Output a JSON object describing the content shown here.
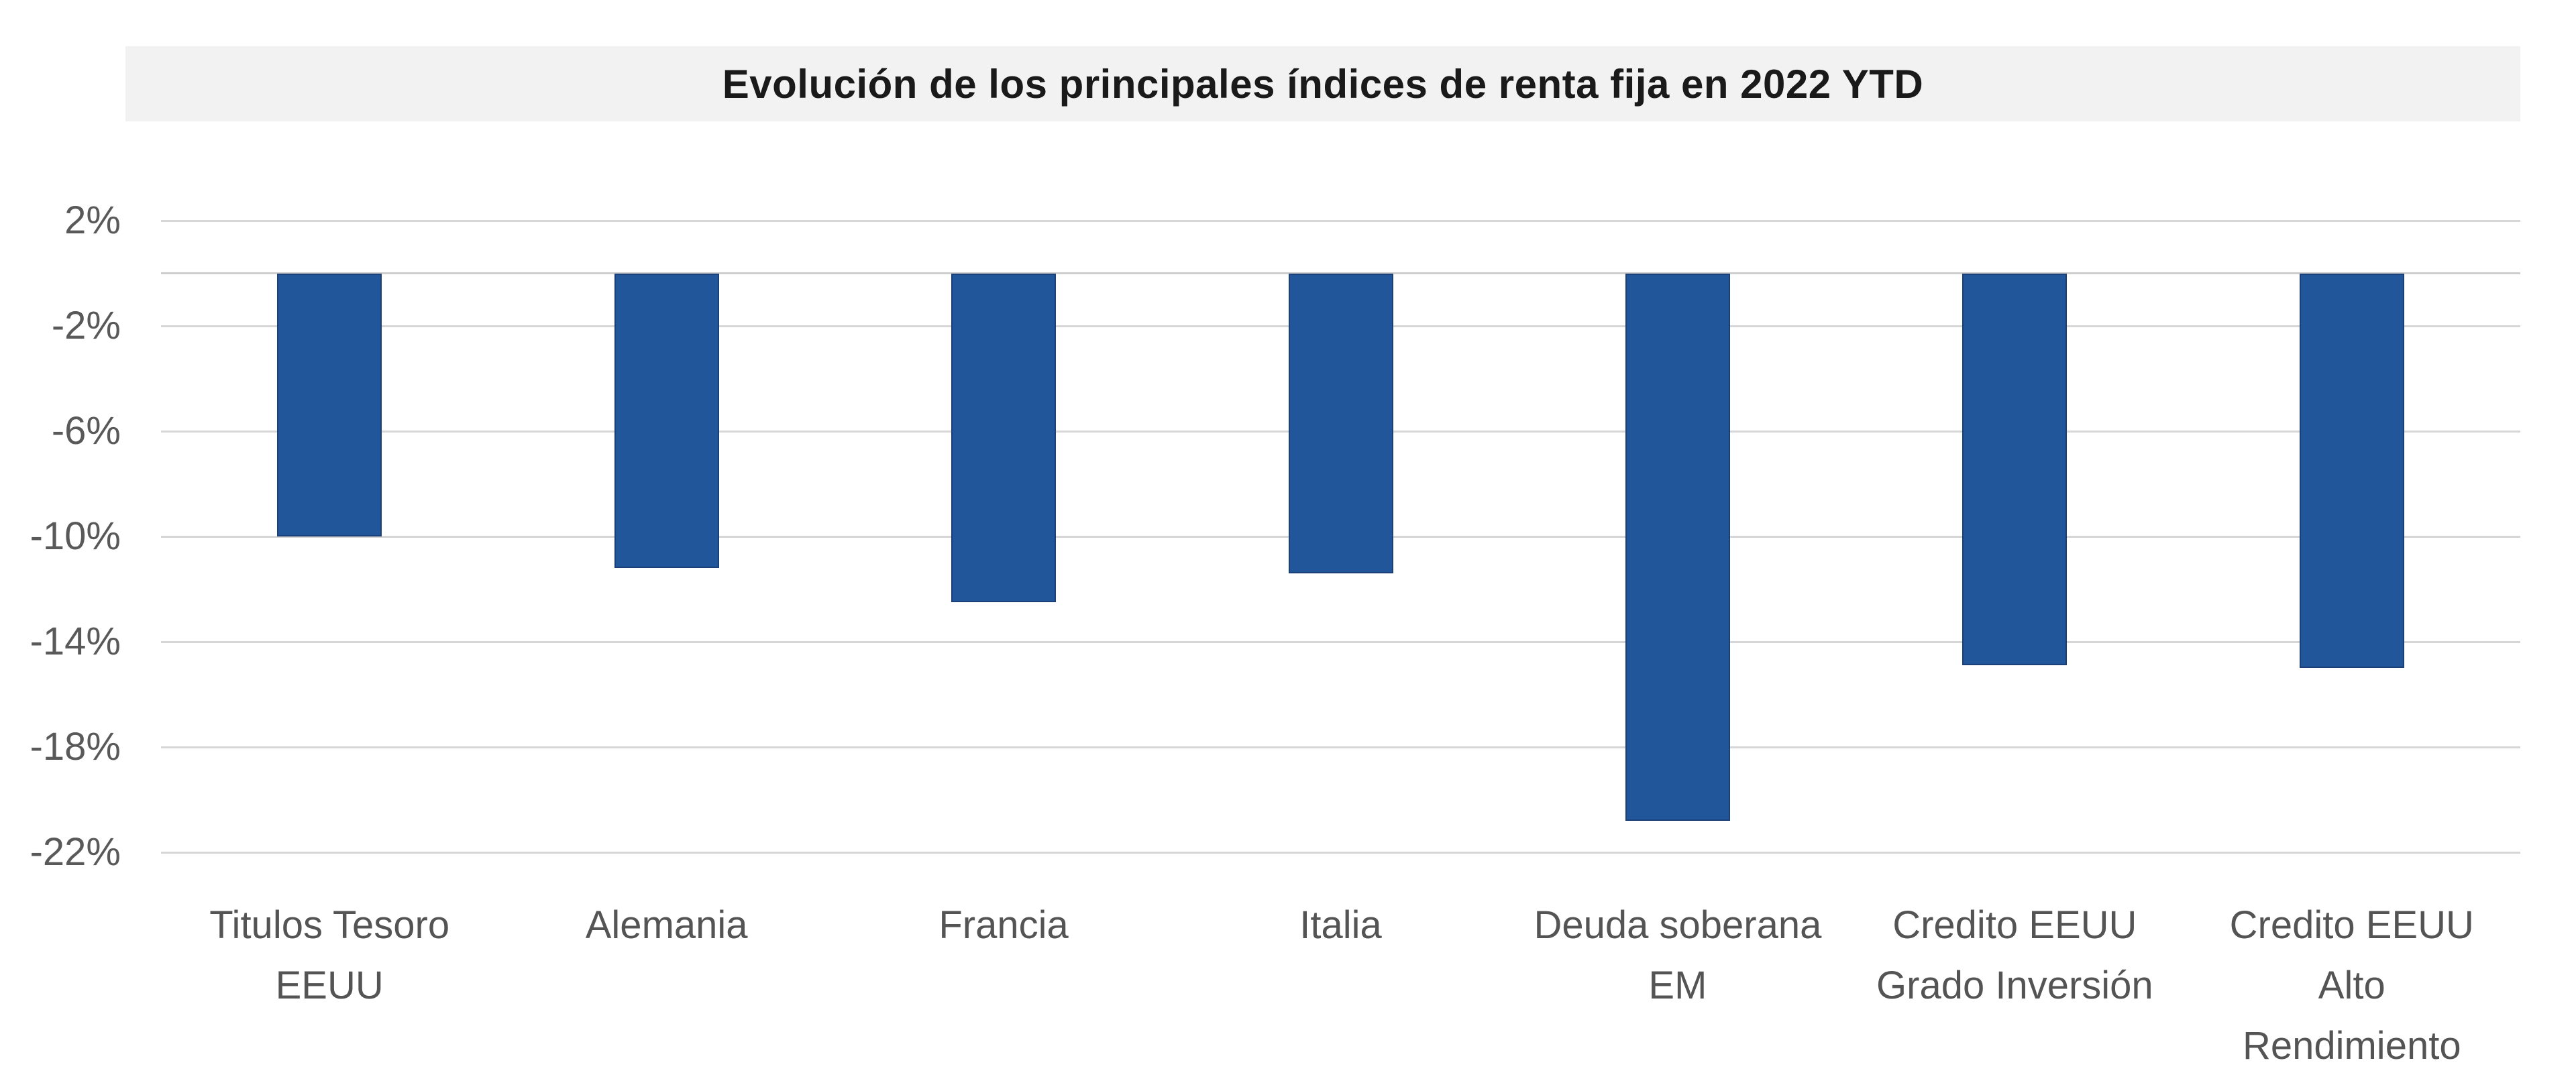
{
  "chart_data": {
    "type": "bar",
    "title": "Evolución de los principales índices de renta fija en 2022 YTD",
    "categories": [
      "Titulos Tesoro EEUU",
      "Alemania",
      "Francia",
      "Italia",
      "Deuda soberana EM",
      "Credito EEUU Grado Inversión",
      "Credito EEUU Alto Rendimiento"
    ],
    "category_lines": [
      [
        "Titulos Tesoro",
        "EEUU"
      ],
      [
        "Alemania"
      ],
      [
        "Francia"
      ],
      [
        "Italia"
      ],
      [
        "Deuda soberana",
        "EM"
      ],
      [
        "Credito EEUU",
        "Grado Inversión"
      ],
      [
        "Credito EEUU",
        "Alto",
        "Rendimiento"
      ]
    ],
    "values": [
      -10.0,
      -11.2,
      -12.5,
      -11.4,
      -20.8,
      -14.9,
      -15.0
    ],
    "unit": "%",
    "xlabel": "",
    "ylabel": "",
    "ylim": [
      2,
      -22
    ],
    "yticks": [
      2,
      -2,
      -6,
      -10,
      -14,
      -18,
      -22
    ],
    "ytick_labels": [
      "2%",
      "-2%",
      "-6%",
      "-10%",
      "-14%",
      "-18%",
      "-22%"
    ],
    "grid": true,
    "legend": false,
    "colors": {
      "bar_fill": "#21569B",
      "bar_border": "#1B4077",
      "gridline": "#D6D6D6",
      "zero_axis": "#CDCDCD",
      "tick_label": "#595959",
      "category_label": "#545454",
      "title_text": "#1A1A1A",
      "title_background": "#F2F2F2",
      "page_background": "#FFFFFF"
    }
  }
}
